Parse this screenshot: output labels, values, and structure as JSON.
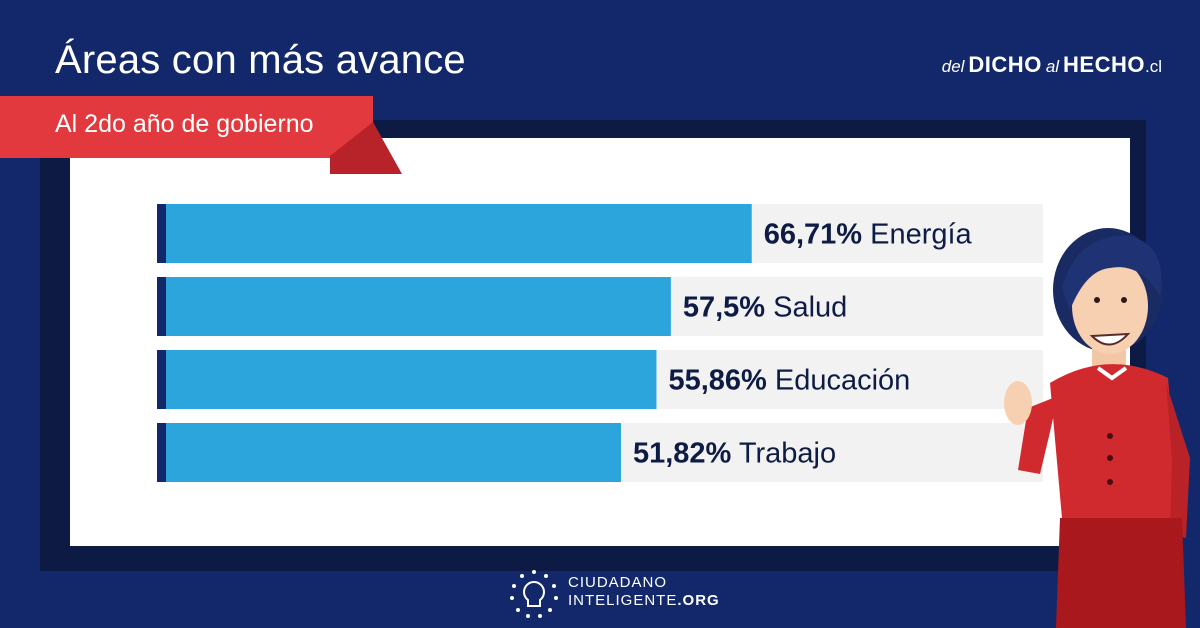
{
  "header": {
    "title": "Áreas con más avance",
    "subtitle": "Al 2do año de gobierno",
    "brand": {
      "part1": "del",
      "part2": "DICHO",
      "part3": "al",
      "part4": "HECHO",
      "part5": ".cl"
    }
  },
  "footer": {
    "line1": "CIUDADANO",
    "line2_a": "INTELIGENTE",
    "line2_b": ".ORG"
  },
  "colors": {
    "background": "#13286b",
    "bar": "#2ba5dc",
    "bar_track": "#f2f2f2",
    "bar_edge": "#13286b",
    "ribbon": "#e2393e",
    "label_dark": "#0d1b45"
  },
  "chart_data": {
    "type": "bar",
    "orientation": "horizontal",
    "categories": [
      "Energía",
      "Salud",
      "Educación",
      "Trabajo"
    ],
    "values": [
      66.71,
      57.5,
      55.86,
      51.82
    ],
    "value_labels": [
      "66,71%",
      "57,5%",
      "55,86%",
      "51,82%"
    ],
    "xlim": [
      0,
      100
    ]
  }
}
